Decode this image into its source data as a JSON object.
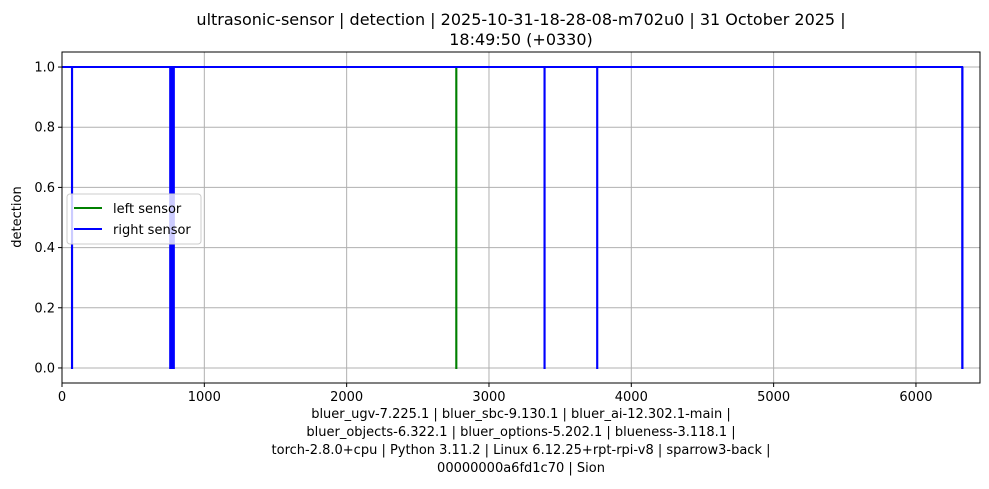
{
  "chart_data": {
    "type": "line",
    "title": [
      "ultrasonic-sensor | detection | 2025-10-31-18-28-08-m702u0 | 31 October 2025 |",
      "18:49:50 (+0330)"
    ],
    "xlabel": [
      "bluer_ugv-7.225.1 | bluer_sbc-9.130.1 | bluer_ai-12.302.1-main |",
      "bluer_objects-6.322.1 | bluer_options-5.202.1 | blueness-3.118.1 |",
      "torch-2.8.0+cpu | Python 3.11.2 | Linux 6.12.25+rpt-rpi-v8 | sparrow3-back |",
      "00000000a6fd1c70 | Sion"
    ],
    "ylabel": "detection",
    "xlim": [
      0,
      6450
    ],
    "ylim": [
      -0.05,
      1.05
    ],
    "xticks": [
      0,
      1000,
      2000,
      3000,
      4000,
      5000,
      6000
    ],
    "yticks": [
      0.0,
      0.2,
      0.4,
      0.6,
      0.8,
      1.0
    ],
    "xtick_labels": [
      "0",
      "1000",
      "2000",
      "3000",
      "4000",
      "5000",
      "6000"
    ],
    "ytick_labels": [
      "0.0",
      "0.2",
      "0.4",
      "0.6",
      "0.8",
      "1.0"
    ],
    "grid": true,
    "legend_position": "center-left",
    "series": [
      {
        "name": "left sensor",
        "color": "#008000",
        "x": [
          0,
          2770,
          2770,
          2771,
          2771,
          6330
        ],
        "y": [
          1,
          1,
          0,
          0,
          1,
          1
        ]
      },
      {
        "name": "right sensor",
        "color": "#0000ff",
        "x": [
          0,
          70,
          70,
          71,
          71,
          760,
          760,
          762,
          762,
          766,
          766,
          768,
          768,
          772,
          772,
          774,
          774,
          778,
          778,
          780,
          780,
          784,
          784,
          786,
          786,
          3390,
          3390,
          3391,
          3391,
          3760,
          3760,
          3761,
          3761,
          6325,
          6325,
          6327,
          6327,
          6330
        ],
        "y": [
          1,
          1,
          0,
          0,
          1,
          1,
          0,
          0,
          1,
          1,
          0,
          0,
          1,
          1,
          0,
          0,
          1,
          1,
          0,
          0,
          1,
          1,
          0,
          0,
          1,
          1,
          0,
          0,
          1,
          1,
          0,
          0,
          1,
          1,
          0,
          0,
          1,
          1
        ]
      }
    ]
  }
}
